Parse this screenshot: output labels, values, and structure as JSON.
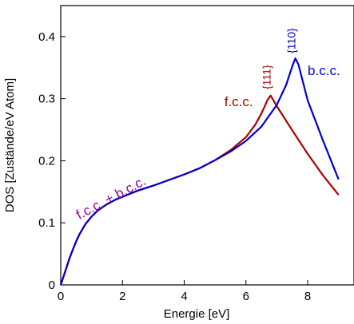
{
  "chart_data": {
    "type": "line",
    "title": "",
    "xlabel": "Energie [eV]",
    "ylabel": "DOS [Zustände/eV Atom]",
    "xlim": [
      0,
      9.5
    ],
    "ylim": [
      0,
      0.45
    ],
    "xticks": [
      0,
      2,
      4,
      6,
      8
    ],
    "yticks": [
      0,
      0.1,
      0.2,
      0.3,
      0.4
    ],
    "xtick_labels": [
      "0",
      "2",
      "4",
      "6",
      "8"
    ],
    "ytick_labels": [
      "0",
      "0.1",
      "0.2",
      "0.3",
      "0.4"
    ],
    "grid": false,
    "series": [
      {
        "color": "#aa0000",
        "x": [
          0,
          0.1,
          0.2,
          0.3,
          0.4,
          0.5,
          0.6,
          0.8,
          1.0,
          1.2,
          1.5,
          1.8,
          2.0,
          2.3,
          2.5,
          3.0,
          3.5,
          4.0,
          4.5,
          5.0,
          5.5,
          6.0,
          6.3,
          6.5,
          6.6,
          6.7,
          6.8,
          7.0,
          7.5,
          8.0,
          8.5,
          9.0
        ],
        "y": [
          0,
          0.015,
          0.03,
          0.045,
          0.058,
          0.07,
          0.081,
          0.098,
          0.11,
          0.12,
          0.13,
          0.138,
          0.142,
          0.148,
          0.152,
          0.16,
          0.169,
          0.178,
          0.188,
          0.201,
          0.217,
          0.238,
          0.258,
          0.276,
          0.287,
          0.298,
          0.305,
          0.288,
          0.249,
          0.211,
          0.176,
          0.145
        ]
      },
      {
        "color": "#0000cc",
        "x": [
          0,
          0.1,
          0.2,
          0.3,
          0.4,
          0.5,
          0.6,
          0.8,
          1.0,
          1.2,
          1.5,
          1.8,
          2.0,
          2.3,
          2.5,
          3.0,
          3.5,
          4.0,
          4.5,
          5.0,
          5.5,
          6.0,
          6.5,
          7.0,
          7.3,
          7.5,
          7.6,
          7.7,
          8.0,
          8.5,
          9.0
        ],
        "y": [
          0,
          0.015,
          0.03,
          0.045,
          0.058,
          0.07,
          0.081,
          0.098,
          0.11,
          0.12,
          0.13,
          0.138,
          0.142,
          0.148,
          0.152,
          0.16,
          0.169,
          0.178,
          0.188,
          0.201,
          0.215,
          0.232,
          0.255,
          0.29,
          0.322,
          0.352,
          0.365,
          0.355,
          0.297,
          0.232,
          0.17
        ]
      }
    ],
    "annotations": [
      {
        "text": "b.c.c.",
        "x": 8.0,
        "y": 0.338,
        "color": "#0000cc"
      },
      {
        "text": "f.c.c.",
        "x": 5.3,
        "y": 0.288,
        "color": "#aa0000"
      },
      {
        "text": "f.c.c. + b.c.c.",
        "x": 0.6,
        "y": 0.105,
        "color": "#990099",
        "rotate": -28
      },
      {
        "text": "{111}",
        "x": 6.8,
        "y": 0.315,
        "color": "#aa0000",
        "rotate": -90
      },
      {
        "text": "{110}",
        "x": 7.6,
        "y": 0.373,
        "color": "#0000cc",
        "rotate": -90
      }
    ]
  }
}
